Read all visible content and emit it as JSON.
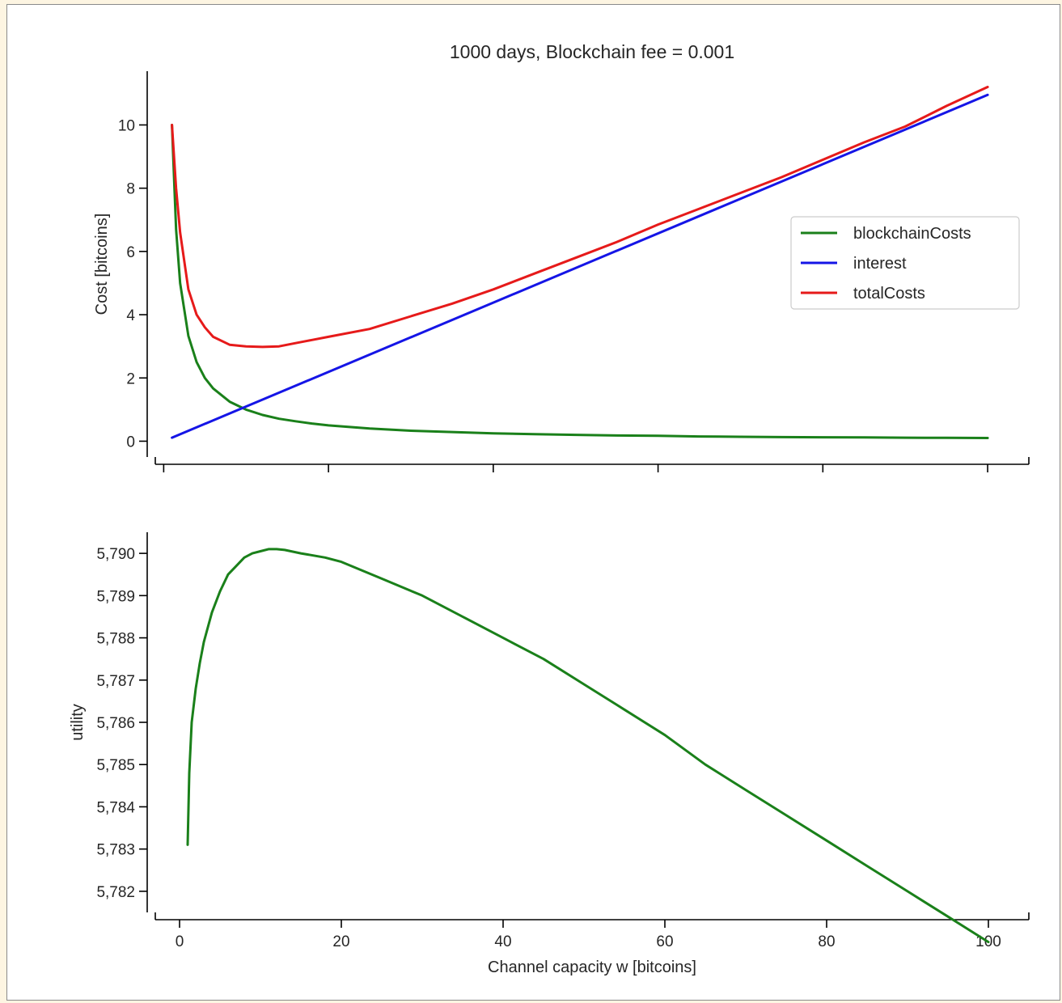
{
  "chart_data": [
    {
      "type": "line",
      "title": "1000 days, Blockchain fee = 0.001",
      "xlabel": "",
      "ylabel": "Cost [bitcoins]",
      "xlim": [
        -2,
        105
      ],
      "ylim": [
        -0.5,
        11.7
      ],
      "xticks": [
        0,
        20,
        40,
        60,
        80,
        100
      ],
      "xtick_labels_shown": false,
      "yticks": [
        0,
        2,
        4,
        6,
        8,
        10
      ],
      "ytick_labels": [
        "0",
        "2",
        "4",
        "6",
        "8",
        "10"
      ],
      "grid": false,
      "legend_position": "upper right",
      "series": [
        {
          "name": "blockchainCosts",
          "color": "#1a801a",
          "x": [
            1,
            1.5,
            2,
            3,
            4,
            5,
            6,
            8,
            10,
            12,
            14,
            16,
            18,
            20,
            25,
            30,
            35,
            40,
            45,
            50,
            55,
            60,
            65,
            70,
            75,
            80,
            85,
            90,
            95,
            100
          ],
          "y": [
            10.0,
            6.7,
            5.0,
            3.33,
            2.5,
            2.0,
            1.67,
            1.25,
            1.0,
            0.83,
            0.71,
            0.63,
            0.56,
            0.5,
            0.4,
            0.33,
            0.29,
            0.25,
            0.22,
            0.2,
            0.18,
            0.17,
            0.15,
            0.14,
            0.13,
            0.125,
            0.12,
            0.11,
            0.105,
            0.1
          ]
        },
        {
          "name": "interest",
          "color": "#1515e6",
          "x": [
            1,
            100
          ],
          "y": [
            0.11,
            10.95
          ]
        },
        {
          "name": "totalCosts",
          "color": "#e61a1a",
          "x": [
            1,
            1.5,
            2,
            3,
            4,
            5,
            6,
            8,
            10,
            12,
            14,
            16,
            18,
            20,
            25,
            30,
            35,
            40,
            45,
            50,
            55,
            60,
            65,
            70,
            75,
            80,
            85,
            90,
            95,
            100
          ],
          "y": [
            10.0,
            8.0,
            6.6,
            4.8,
            4.0,
            3.6,
            3.3,
            3.05,
            3.0,
            2.98,
            3.0,
            3.1,
            3.2,
            3.3,
            3.55,
            3.95,
            4.35,
            4.8,
            5.3,
            5.8,
            6.3,
            6.85,
            7.35,
            7.85,
            8.35,
            8.9,
            9.45,
            9.95,
            10.6,
            11.2
          ]
        }
      ]
    },
    {
      "type": "line",
      "title": "",
      "xlabel": "Channel capacity w [bitcoins]",
      "ylabel": "utility",
      "xlim": [
        -4,
        105
      ],
      "ylim": [
        5.7815,
        5.7905
      ],
      "xticks": [
        0,
        20,
        40,
        60,
        80,
        100
      ],
      "xtick_labels": [
        "0",
        "20",
        "40",
        "60",
        "80",
        "100"
      ],
      "yticks": [
        5.782,
        5.783,
        5.784,
        5.785,
        5.786,
        5.787,
        5.788,
        5.789,
        5.79
      ],
      "ytick_labels": [
        "5,782",
        "5,783",
        "5,784",
        "5,785",
        "5,786",
        "5,787",
        "5,788",
        "5,789",
        "5,790"
      ],
      "grid": false,
      "series": [
        {
          "color": "#1a801a",
          "x": [
            1,
            1.2,
            1.5,
            2,
            2.5,
            3,
            4,
            5,
            6,
            7,
            8,
            9,
            10,
            11,
            12,
            13,
            15,
            18,
            20,
            25,
            30,
            35,
            40,
            45,
            50,
            55,
            60,
            65,
            70,
            75,
            80,
            85,
            90,
            95,
            100
          ],
          "y": [
            5.7831,
            5.7848,
            5.786,
            5.7868,
            5.7874,
            5.7879,
            5.7886,
            5.7891,
            5.7895,
            5.7897,
            5.7899,
            5.79,
            5.79005,
            5.7901,
            5.7901,
            5.79008,
            5.79,
            5.7899,
            5.7898,
            5.7894,
            5.789,
            5.7885,
            5.788,
            5.7875,
            5.7869,
            5.7863,
            5.7857,
            5.785,
            5.7844,
            5.7838,
            5.7832,
            5.7826,
            5.782,
            5.7814,
            5.7808
          ]
        }
      ]
    }
  ]
}
